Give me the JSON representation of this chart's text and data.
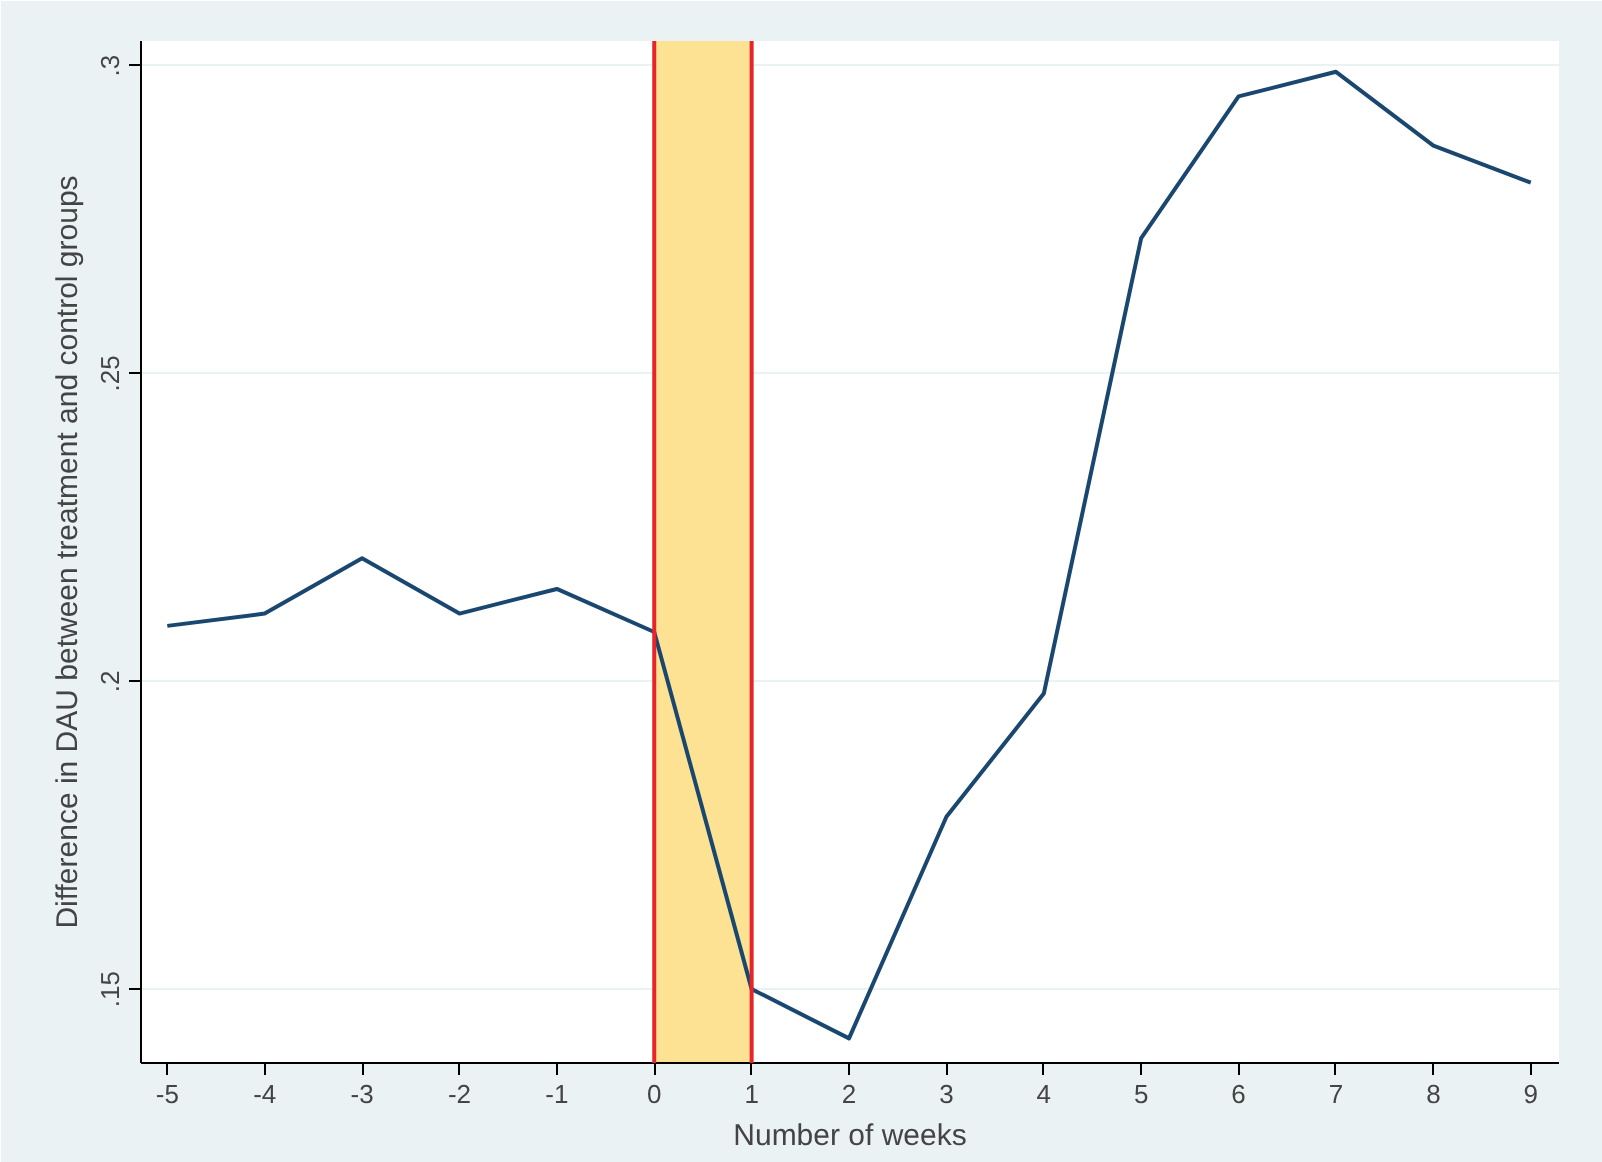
{
  "chart_data": {
    "type": "line",
    "xlabel": "Number of weeks",
    "ylabel": "Difference in DAU between treatment and control groups",
    "x": [
      -5,
      -4,
      -3,
      -2,
      -1,
      0,
      1,
      2,
      3,
      4,
      5,
      6,
      7,
      8,
      9
    ],
    "series": [
      {
        "color": "#1a476f",
        "values": [
          0.209,
          0.211,
          0.22,
          0.211,
          0.215,
          0.208,
          0.15,
          0.142,
          0.178,
          0.198,
          0.272,
          0.295,
          0.299,
          0.287,
          0.281
        ]
      }
    ],
    "xlim": [
      -5.27,
      9.29
    ],
    "ylim": [
      0.138,
      0.304
    ],
    "xticks": [
      -5,
      -4,
      -3,
      -2,
      -1,
      0,
      1,
      2,
      3,
      4,
      5,
      6,
      7,
      8,
      9
    ],
    "yticks": [
      {
        "value": 0.15,
        "label": ".15"
      },
      {
        "value": 0.2,
        "label": ".2"
      },
      {
        "value": 0.25,
        "label": ".25"
      },
      {
        "value": 0.3,
        "label": ".3"
      }
    ],
    "bands": [
      {
        "axis": "x",
        "from": 0,
        "to": 1,
        "color": "#fde293"
      }
    ],
    "ref_lines": [
      {
        "axis": "x",
        "value": 0,
        "color": "#e8242b"
      },
      {
        "axis": "x",
        "value": 1,
        "color": "#e8242b"
      }
    ],
    "grid": "y",
    "marker": "none",
    "line_style": "solid"
  }
}
